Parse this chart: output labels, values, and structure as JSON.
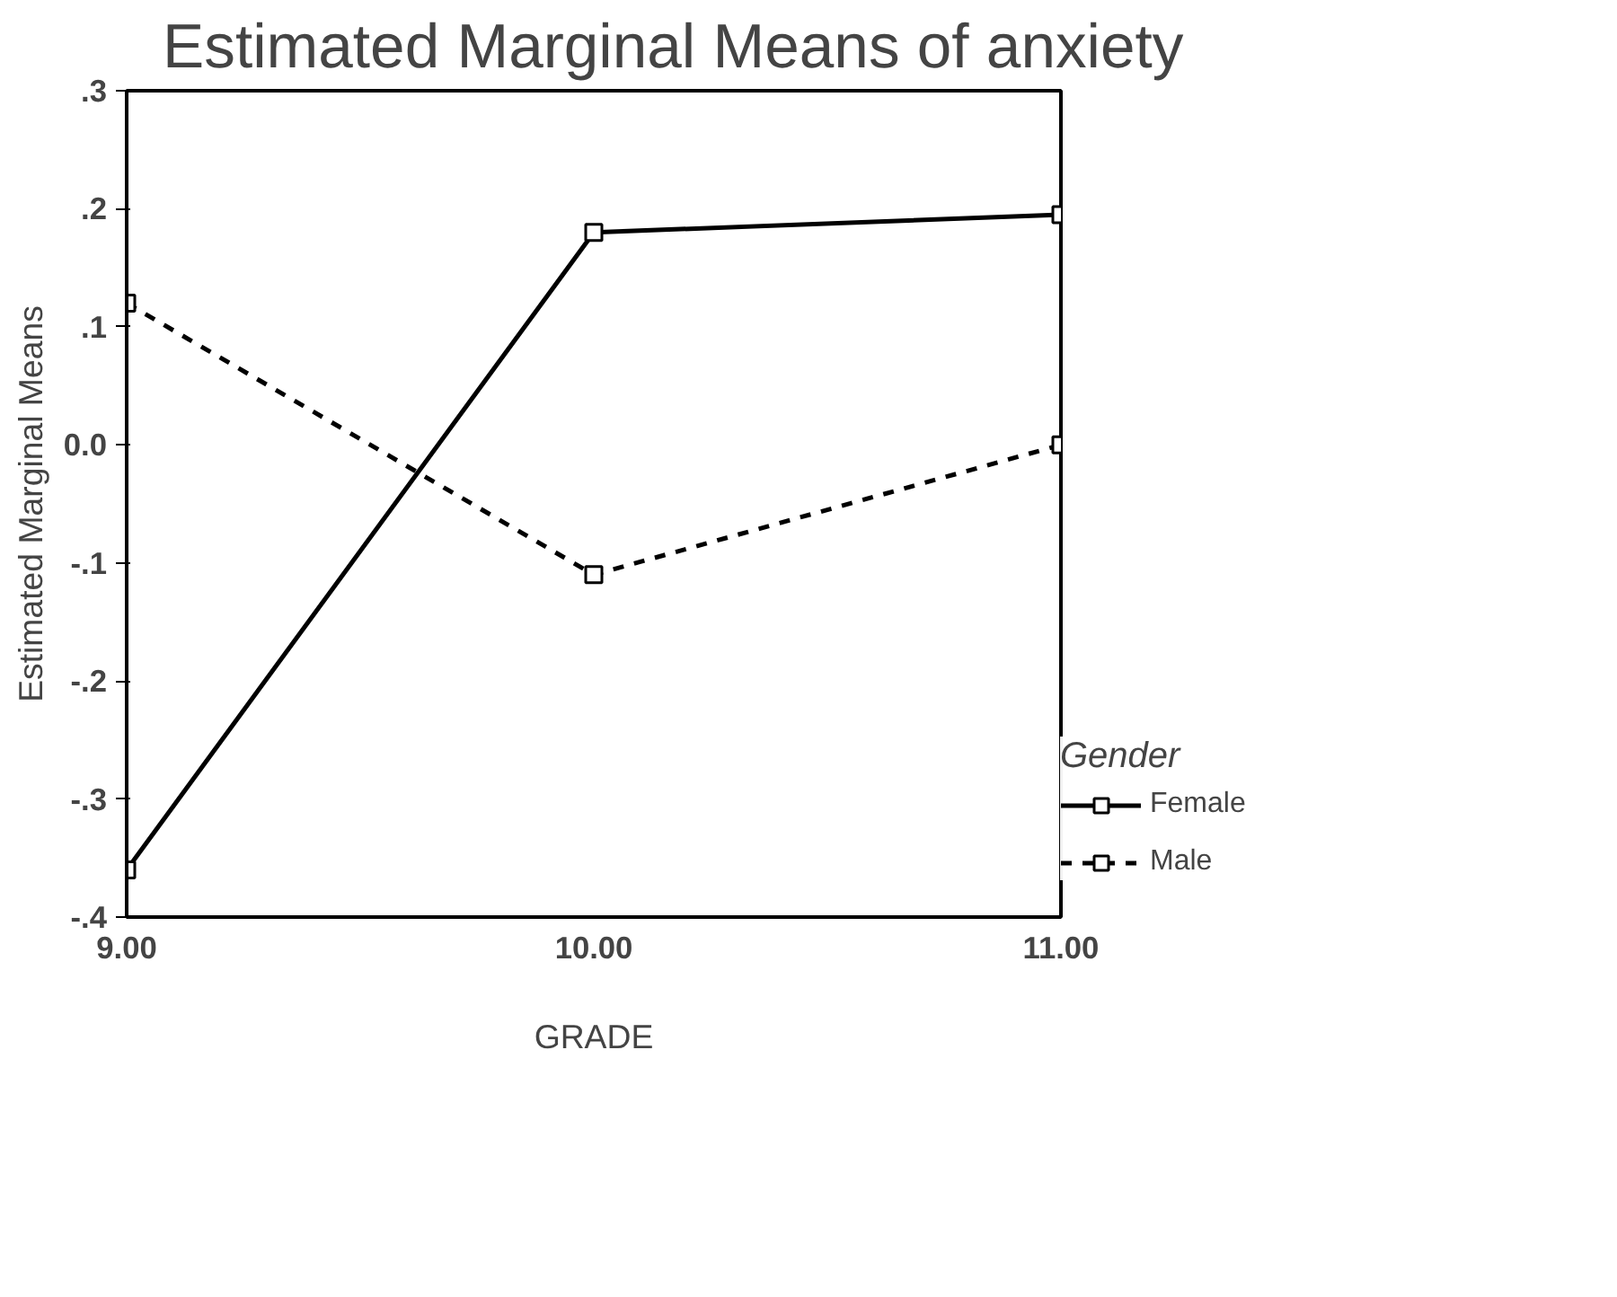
{
  "chart_data": {
    "type": "line",
    "title": "Estimated Marginal Means of anxiety",
    "xlabel": "GRADE",
    "ylabel": "Estimated Marginal Means",
    "legend_title": "Gender",
    "legend": "right",
    "grid": false,
    "marker": "square",
    "x": [
      9,
      10,
      11
    ],
    "xlim": [
      9,
      11
    ],
    "xticks": [
      {
        "value": 9,
        "label": "9.00"
      },
      {
        "value": 10,
        "label": "10.00"
      },
      {
        "value": 11,
        "label": "11.00"
      }
    ],
    "ylim": [
      -0.4,
      0.3
    ],
    "yticks": [
      {
        "value": -0.4,
        "label": "-.4"
      },
      {
        "value": -0.3,
        "label": "-.3"
      },
      {
        "value": -0.2,
        "label": "-.2"
      },
      {
        "value": -0.1,
        "label": "-.1"
      },
      {
        "value": 0,
        "label": "0.0"
      },
      {
        "value": 0.1,
        "label": ".1"
      },
      {
        "value": 0.2,
        "label": ".2"
      },
      {
        "value": 0.3,
        "label": ".3"
      }
    ],
    "series": [
      {
        "name": "Female",
        "color": "#000000",
        "line_style": "solid",
        "values": [
          -0.36,
          0.18,
          0.195
        ]
      },
      {
        "name": "Male",
        "color": "#000000",
        "line_style": "dashed",
        "values": [
          0.12,
          -0.11,
          0.0
        ]
      }
    ]
  }
}
